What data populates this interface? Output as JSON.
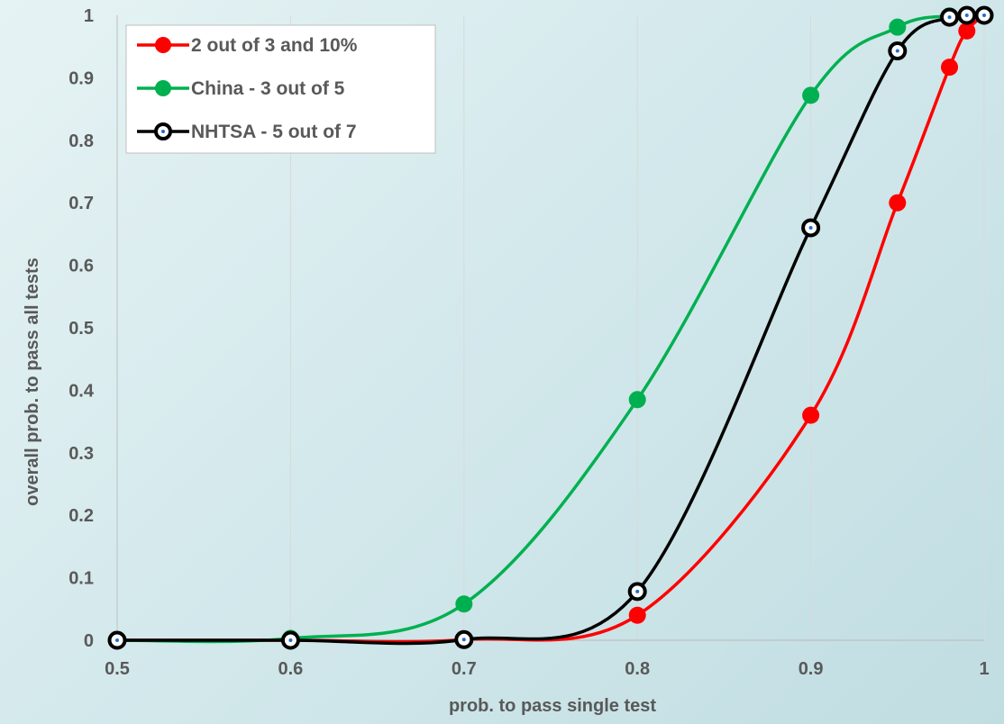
{
  "chart_data": {
    "type": "line",
    "title": "",
    "xlabel": "prob. to pass single test",
    "ylabel": "overall prob. to pass all tests",
    "xlim": [
      0.5,
      1.0
    ],
    "ylim": [
      0,
      1
    ],
    "xticks": [
      "0.5",
      "0.6",
      "0.7",
      "0.8",
      "0.9",
      "1"
    ],
    "yticks": [
      "0",
      "0.1",
      "0.2",
      "0.3",
      "0.4",
      "0.5",
      "0.6",
      "0.7",
      "0.8",
      "0.9",
      "1"
    ],
    "grid": "vertical",
    "legend_position": "top-left",
    "series": [
      {
        "name": "2 out of 3 and 10%",
        "color": "#ff0000",
        "marker_dot": false,
        "x": [
          0.5,
          0.6,
          0.7,
          0.8,
          0.9,
          0.95,
          0.98,
          0.99,
          1.0
        ],
        "y": [
          0.0,
          0.0,
          0.001,
          0.04,
          0.36,
          0.7,
          0.917,
          0.975,
          1.0
        ]
      },
      {
        "name": "China - 3 out of 5",
        "color": "#00b050",
        "marker_dot": false,
        "x": [
          0.5,
          0.6,
          0.7,
          0.8,
          0.9,
          0.95,
          0.98
        ],
        "y": [
          0.0,
          0.003,
          0.058,
          0.385,
          0.872,
          0.981,
          0.999
        ]
      },
      {
        "name": "NHTSA - 5 out of 7",
        "color": "#000000",
        "marker_dot": true,
        "x": [
          0.5,
          0.6,
          0.7,
          0.8,
          0.9,
          0.95,
          0.98,
          0.99,
          1.0
        ],
        "y": [
          0.0,
          0.0,
          0.001,
          0.078,
          0.66,
          0.943,
          0.997,
          1.0,
          1.0
        ]
      }
    ]
  }
}
